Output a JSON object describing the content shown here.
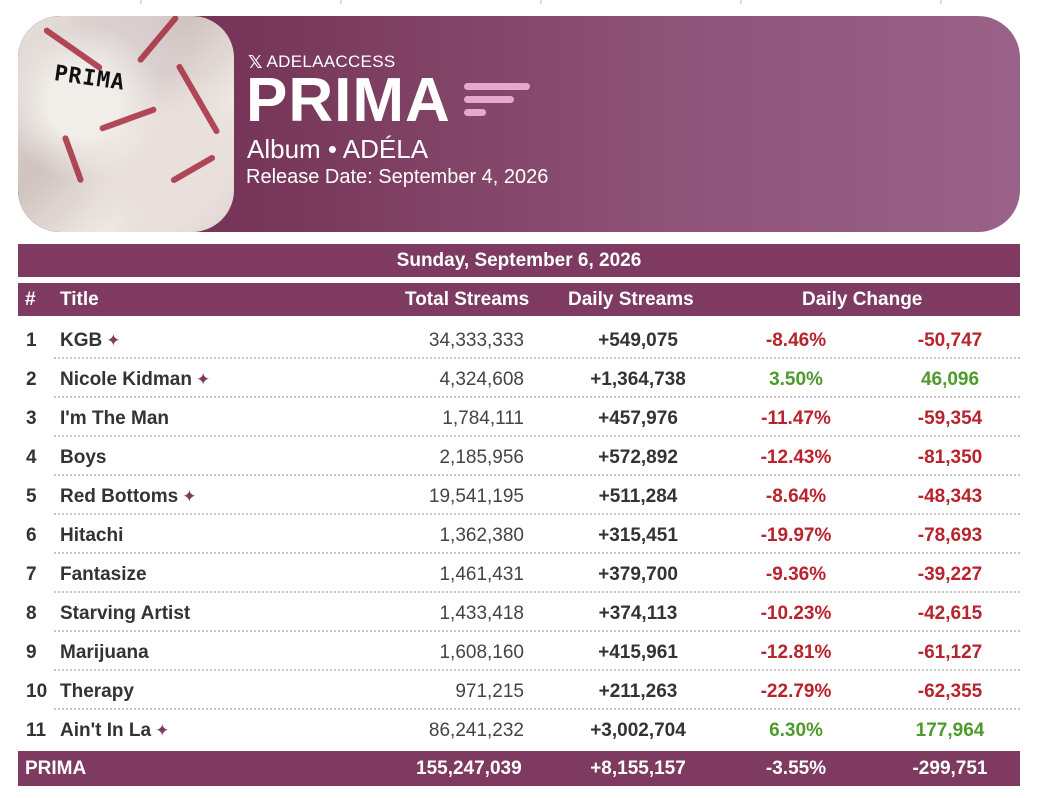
{
  "header": {
    "cover_title": "PRIMA",
    "handle": "ADELAACCESS",
    "title": "PRIMA",
    "subtitle": "Album • ADÉLA",
    "release_date": "Release Date: September 4, 2026"
  },
  "table": {
    "date": "Sunday, September 6, 2026",
    "columns": {
      "rank": "#",
      "title": "Title",
      "total": "Total Streams",
      "daily": "Daily Streams",
      "change": "Daily Change"
    },
    "rows": [
      {
        "rank": "1",
        "title": "KGB",
        "sparkle": "✦",
        "total": "34,333,333",
        "daily": "+549,075",
        "pct": "-8.46%",
        "change": "-50,747",
        "trend": "neg"
      },
      {
        "rank": "2",
        "title": "Nicole Kidman",
        "sparkle": "✦",
        "total": "4,324,608",
        "daily": "+1,364,738",
        "pct": "3.50%",
        "change": "46,096",
        "trend": "pos"
      },
      {
        "rank": "3",
        "title": "I'm The Man",
        "sparkle": "",
        "total": "1,784,111",
        "daily": "+457,976",
        "pct": "-11.47%",
        "change": "-59,354",
        "trend": "neg"
      },
      {
        "rank": "4",
        "title": "Boys",
        "sparkle": "",
        "total": "2,185,956",
        "daily": "+572,892",
        "pct": "-12.43%",
        "change": "-81,350",
        "trend": "neg"
      },
      {
        "rank": "5",
        "title": "Red Bottoms",
        "sparkle": "✦",
        "total": "19,541,195",
        "daily": "+511,284",
        "pct": "-8.64%",
        "change": "-48,343",
        "trend": "neg"
      },
      {
        "rank": "6",
        "title": "Hitachi",
        "sparkle": "",
        "total": "1,362,380",
        "daily": "+315,451",
        "pct": "-19.97%",
        "change": "-78,693",
        "trend": "neg"
      },
      {
        "rank": "7",
        "title": "Fantasize",
        "sparkle": "",
        "total": "1,461,431",
        "daily": "+379,700",
        "pct": "-9.36%",
        "change": "-39,227",
        "trend": "neg"
      },
      {
        "rank": "8",
        "title": "Starving Artist",
        "sparkle": "",
        "total": "1,433,418",
        "daily": "+374,113",
        "pct": "-10.23%",
        "change": "-42,615",
        "trend": "neg"
      },
      {
        "rank": "9",
        "title": "Marijuana",
        "sparkle": "",
        "total": "1,608,160",
        "daily": "+415,961",
        "pct": "-12.81%",
        "change": "-61,127",
        "trend": "neg"
      },
      {
        "rank": "10",
        "title": "Therapy",
        "sparkle": "",
        "total": "971,215",
        "daily": "+211,263",
        "pct": "-22.79%",
        "change": "-62,355",
        "trend": "neg"
      },
      {
        "rank": "11",
        "title": "Ain't In La",
        "sparkle": "✦",
        "total": "86,241,232",
        "daily": "+3,002,704",
        "pct": "6.30%",
        "change": "177,964",
        "trend": "pos"
      }
    ],
    "footer": {
      "label": "PRIMA",
      "total": "155,247,039",
      "daily": "+8,155,157",
      "pct": "-3.55%",
      "change": "-299,751"
    }
  },
  "colors": {
    "accent": "#7e3a60",
    "negative": "#b8232d",
    "positive": "#4e9a2c"
  },
  "icons": {
    "brand": "x-logo-icon",
    "chart": "streaming-bars-icon",
    "new_marker": "sparkle-icon"
  }
}
